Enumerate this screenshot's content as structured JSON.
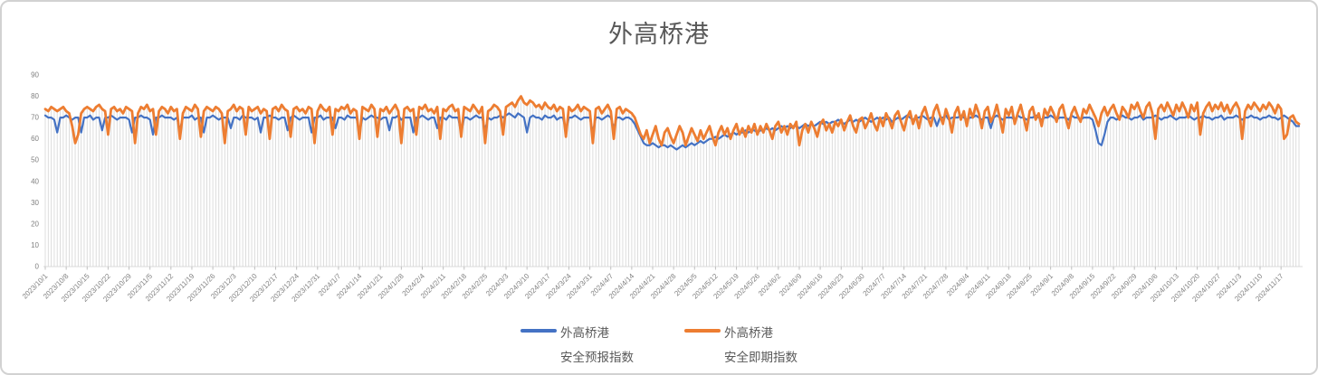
{
  "title": "外高桥港",
  "colors": {
    "series_forecast": "#4472C4",
    "series_current": "#ED7D31",
    "drop_line": "#d9d9d9",
    "axis_line": "#d9d9d9",
    "tick_mark": "#bfbfbf",
    "axis_label": "#7f7f7f",
    "title_text": "#595959",
    "legend_text": "#595959"
  },
  "legend": {
    "items": [
      {
        "line1": "外高桥港",
        "line2": "安全预报指数",
        "color": "#4472C4"
      },
      {
        "line1": "外高桥港",
        "line2": "安全即期指数",
        "color": "#ED7D31"
      }
    ]
  },
  "chart_data": {
    "type": "line",
    "title": "外高桥港",
    "x_start": "2023/10/1",
    "x_frequency": "daily",
    "n_points": 420,
    "tick_every": 7,
    "tick_labels": [
      "2023/10/1",
      "2023/10/8",
      "2023/10/15",
      "2023/10/22",
      "2023/10/29",
      "2023/11/5",
      "2023/11/12",
      "2023/11/19",
      "2023/11/26",
      "2023/12/3",
      "2023/12/10",
      "2023/12/17",
      "2023/12/24",
      "2023/12/31",
      "2024/1/7",
      "2024/1/14",
      "2024/1/21",
      "2024/1/28",
      "2024/2/4",
      "2024/2/11",
      "2024/2/18",
      "2024/2/25",
      "2024/3/3",
      "2024/3/10",
      "2024/3/17",
      "2024/3/24",
      "2024/3/31",
      "2024/4/7",
      "2024/4/14",
      "2024/4/21",
      "2024/4/28",
      "2024/5/5",
      "2024/5/12",
      "2024/5/19",
      "2024/5/26",
      "2024/6/2",
      "2024/6/9",
      "2024/6/16",
      "2024/6/23",
      "2024/6/30",
      "2024/7/7",
      "2024/7/14",
      "2024/7/21",
      "2024/7/28",
      "2024/8/4",
      "2024/8/11",
      "2024/8/18",
      "2024/8/25",
      "2024/9/1",
      "2024/9/8",
      "2024/9/15",
      "2024/9/22",
      "2024/9/29",
      "2024/10/6",
      "2024/10/13",
      "2024/10/20",
      "2024/10/27",
      "2024/11/3",
      "2024/11/10",
      "2024/11/17"
    ],
    "ylim": [
      0,
      90
    ],
    "y_ticks": [
      0,
      10,
      20,
      30,
      40,
      50,
      60,
      70,
      80,
      90
    ],
    "grid": "vertical drop lines at each daily point, no horizontal gridlines",
    "legend_position": "bottom",
    "series": [
      {
        "name": "外高桥港 安全预报指数",
        "color": "#4472C4",
        "values": [
          71,
          70,
          70,
          69,
          63,
          70,
          70,
          71,
          70,
          69,
          70,
          70,
          63,
          70,
          70,
          71,
          69,
          70,
          70,
          64,
          70,
          70,
          71,
          70,
          69,
          70,
          70,
          70,
          69,
          63,
          70,
          70,
          71,
          70,
          70,
          69,
          62,
          70,
          70,
          71,
          70,
          70,
          70,
          69,
          70,
          64,
          70,
          70,
          70,
          71,
          69,
          70,
          70,
          63,
          70,
          70,
          71,
          70,
          69,
          70,
          70,
          70,
          65,
          70,
          70,
          69,
          71,
          70,
          70,
          70,
          69,
          70,
          63,
          70,
          70,
          71,
          70,
          70,
          69,
          70,
          70,
          64,
          70,
          71,
          70,
          69,
          70,
          70,
          70,
          63,
          70,
          70,
          71,
          69,
          70,
          70,
          70,
          65,
          70,
          70,
          69,
          71,
          70,
          70,
          70,
          63,
          70,
          69,
          70,
          71,
          70,
          70,
          69,
          70,
          70,
          64,
          70,
          70,
          71,
          69,
          70,
          70,
          70,
          63,
          70,
          70,
          71,
          70,
          69,
          70,
          70,
          65,
          70,
          70,
          69,
          71,
          70,
          70,
          70,
          63,
          70,
          70,
          69,
          70,
          71,
          70,
          70,
          64,
          70,
          69,
          70,
          70,
          71,
          70,
          71,
          72,
          71,
          70,
          72,
          71,
          70,
          63,
          70,
          71,
          70,
          70,
          69,
          71,
          70,
          70,
          71,
          69,
          70,
          70,
          64,
          70,
          70,
          71,
          70,
          69,
          70,
          70,
          70,
          63,
          70,
          70,
          69,
          70,
          71,
          70,
          65,
          70,
          70,
          69,
          70,
          70,
          69,
          67,
          64,
          61,
          58,
          57,
          57,
          58,
          57,
          56,
          57,
          57,
          56,
          57,
          56,
          55,
          56,
          57,
          56,
          57,
          58,
          57,
          58,
          59,
          58,
          59,
          60,
          60,
          61,
          60,
          61,
          62,
          61,
          62,
          63,
          62,
          63,
          63,
          64,
          63,
          64,
          64,
          63,
          64,
          64,
          65,
          64,
          65,
          64,
          65,
          66,
          65,
          66,
          65,
          66,
          66,
          65,
          66,
          67,
          66,
          67,
          66,
          67,
          68,
          67,
          68,
          67,
          68,
          68,
          69,
          68,
          67,
          68,
          69,
          68,
          69,
          68,
          69,
          70,
          69,
          68,
          69,
          70,
          69,
          70,
          69,
          70,
          68,
          69,
          70,
          69,
          70,
          71,
          70,
          69,
          70,
          70,
          71,
          70,
          69,
          70,
          70,
          66,
          70,
          70,
          71,
          69,
          70,
          70,
          70,
          71,
          70,
          69,
          70,
          70,
          71,
          70,
          69,
          70,
          70,
          65,
          70,
          71,
          70,
          69,
          70,
          70,
          70,
          69,
          71,
          70,
          70,
          69,
          70,
          70,
          71,
          70,
          69,
          70,
          70,
          71,
          70,
          69,
          70,
          70,
          70,
          69,
          71,
          70,
          70,
          69,
          70,
          70,
          70,
          69,
          64,
          58,
          57,
          62,
          68,
          70,
          70,
          69,
          70,
          71,
          70,
          70,
          69,
          70,
          70,
          71,
          69,
          70,
          70,
          70,
          71,
          70,
          69,
          70,
          70,
          71,
          70,
          69,
          70,
          70,
          70,
          71,
          70,
          69,
          70,
          70,
          71,
          70,
          70,
          69,
          70,
          70,
          71,
          69,
          70,
          70,
          70,
          71,
          70,
          69,
          70,
          70,
          71,
          70,
          70,
          69,
          70,
          70,
          71,
          70,
          70,
          69,
          70,
          71,
          70,
          69,
          68,
          66,
          66
        ]
      },
      {
        "name": "外高桥港 安全即期指数",
        "color": "#ED7D31",
        "values": [
          74,
          73,
          75,
          74,
          73,
          74,
          75,
          73,
          72,
          66,
          58,
          62,
          72,
          74,
          75,
          74,
          73,
          75,
          76,
          74,
          73,
          62,
          74,
          75,
          73,
          74,
          72,
          75,
          74,
          73,
          58,
          72,
          75,
          74,
          76,
          73,
          74,
          62,
          73,
          75,
          74,
          72,
          75,
          73,
          74,
          60,
          72,
          75,
          74,
          73,
          76,
          74,
          61,
          73,
          75,
          74,
          73,
          75,
          74,
          72,
          58,
          73,
          74,
          76,
          73,
          75,
          74,
          62,
          75,
          73,
          74,
          75,
          72,
          74,
          73,
          60,
          74,
          75,
          73,
          76,
          74,
          73,
          61,
          74,
          75,
          73,
          74,
          72,
          75,
          74,
          58,
          73,
          76,
          74,
          73,
          75,
          62,
          74,
          73,
          75,
          74,
          76,
          72,
          74,
          73,
          60,
          75,
          74,
          73,
          76,
          74,
          61,
          74,
          73,
          75,
          72,
          74,
          76,
          73,
          58,
          74,
          75,
          73,
          74,
          62,
          75,
          74,
          76,
          73,
          74,
          72,
          75,
          60,
          74,
          73,
          75,
          76,
          73,
          74,
          61,
          75,
          74,
          73,
          76,
          74,
          72,
          75,
          58,
          73,
          74,
          76,
          75,
          73,
          62,
          75,
          76,
          77,
          75,
          78,
          80,
          77,
          76,
          78,
          77,
          75,
          76,
          74,
          77,
          75,
          74,
          76,
          73,
          75,
          74,
          61,
          75,
          73,
          74,
          76,
          73,
          75,
          74,
          73,
          58,
          74,
          75,
          72,
          74,
          76,
          73,
          60,
          74,
          75,
          72,
          74,
          73,
          72,
          70,
          66,
          62,
          60,
          64,
          58,
          62,
          66,
          60,
          57,
          63,
          65,
          61,
          58,
          62,
          66,
          63,
          57,
          61,
          65,
          62,
          59,
          64,
          60,
          63,
          66,
          61,
          57,
          63,
          66,
          62,
          65,
          60,
          64,
          67,
          62,
          65,
          61,
          66,
          63,
          67,
          62,
          66,
          63,
          67,
          64,
          60,
          66,
          68,
          63,
          66,
          62,
          67,
          65,
          68,
          57,
          64,
          67,
          63,
          68,
          65,
          61,
          67,
          69,
          64,
          67,
          63,
          68,
          66,
          69,
          64,
          68,
          71,
          66,
          63,
          69,
          70,
          65,
          68,
          72,
          67,
          64,
          70,
          66,
          72,
          69,
          65,
          71,
          73,
          68,
          64,
          70,
          73,
          67,
          71,
          65,
          72,
          75,
          70,
          66,
          73,
          76,
          71,
          67,
          74,
          70,
          63,
          72,
          75,
          69,
          73,
          66,
          74,
          70,
          76,
          72,
          65,
          73,
          75,
          68,
          71,
          76,
          70,
          63,
          74,
          71,
          75,
          67,
          72,
          76,
          70,
          64,
          73,
          75,
          69,
          72,
          66,
          74,
          71,
          75,
          72,
          68,
          74,
          76,
          70,
          65,
          72,
          75,
          71,
          68,
          74,
          72,
          76,
          73,
          70,
          66,
          72,
          75,
          71,
          74,
          76,
          72,
          69,
          75,
          73,
          70,
          76,
          74,
          77,
          73,
          70,
          75,
          77,
          72,
          60,
          74,
          76,
          73,
          77,
          74,
          71,
          76,
          73,
          77,
          74,
          70,
          76,
          73,
          77,
          62,
          72,
          75,
          77,
          73,
          76,
          74,
          77,
          73,
          76,
          72,
          75,
          77,
          74,
          60,
          73,
          76,
          74,
          77,
          75,
          73,
          76,
          74,
          77,
          75,
          72,
          76,
          74,
          60,
          62,
          70,
          71,
          68,
          67
        ]
      }
    ]
  }
}
